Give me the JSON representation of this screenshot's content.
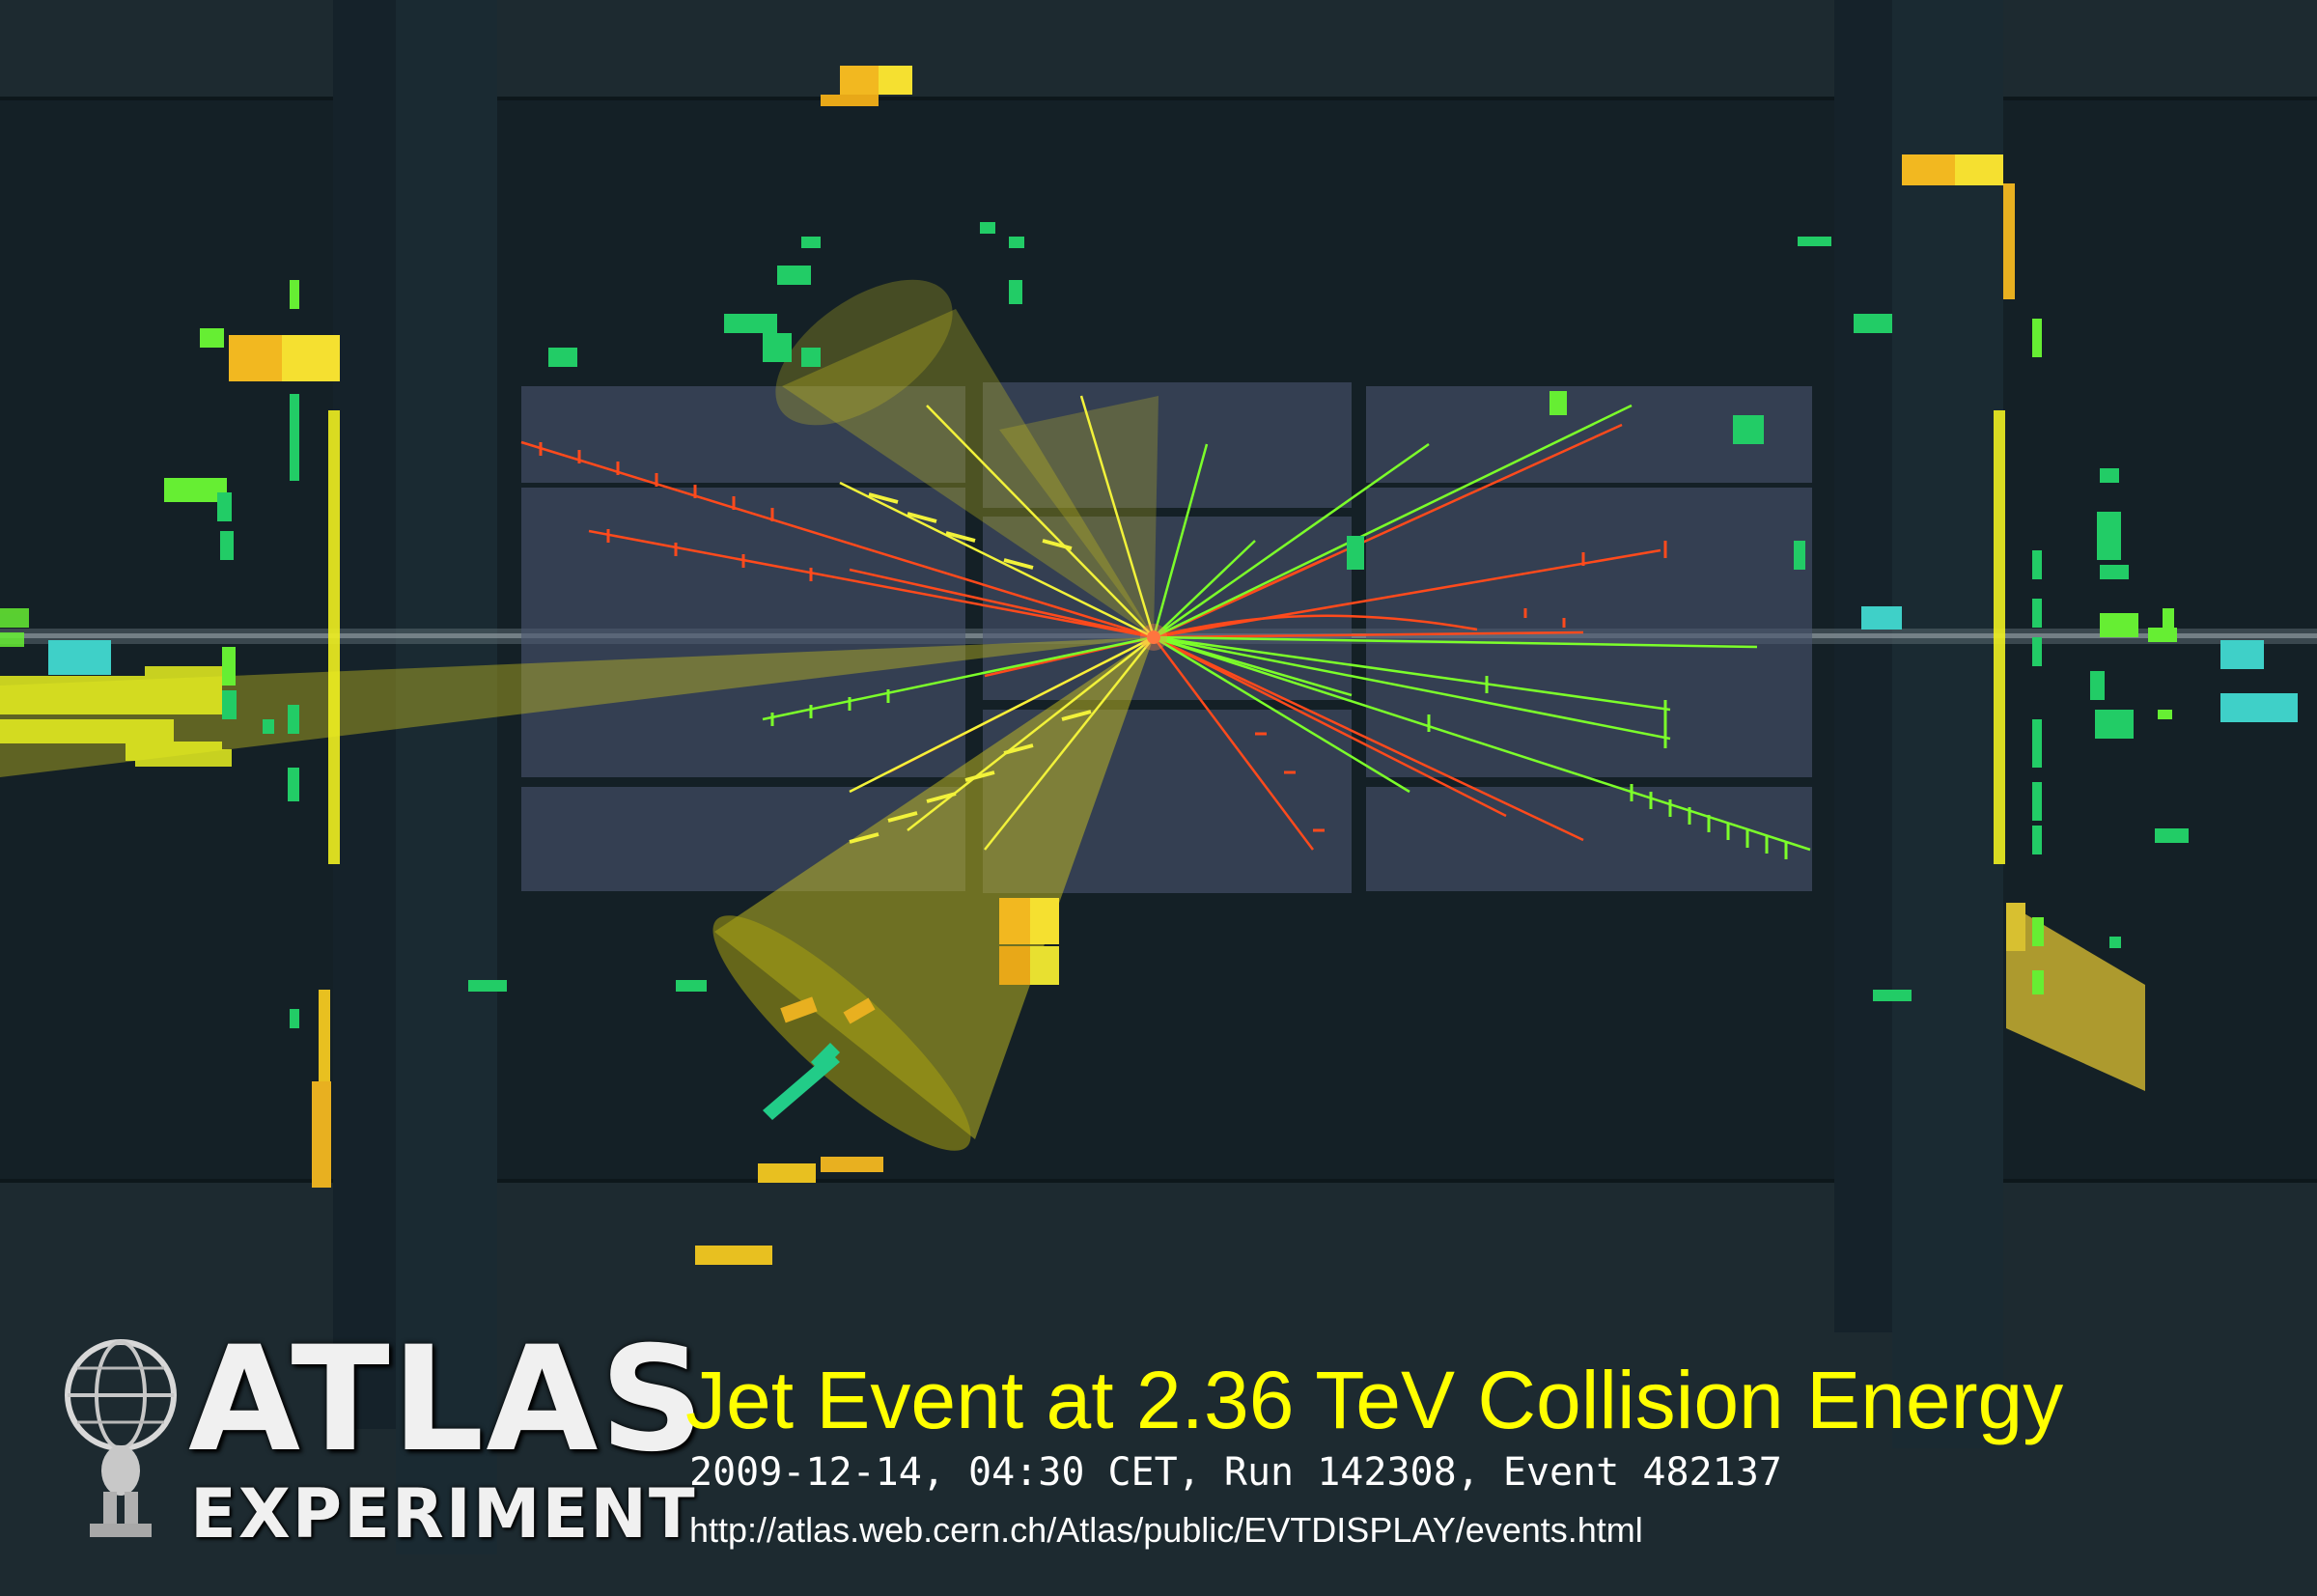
{
  "logo": {
    "title": "ATLAS",
    "subtitle": "EXPERIMENT",
    "icon": "atlas-globe-figure-icon"
  },
  "caption": {
    "title": "Jet Event at 2.36 TeV Collision Energy",
    "meta": "2009-12-14, 04:30 CET, Run 142308, Event 482137",
    "url": "http://atlas.web.cern.ch/Atlas/public/EVTDISPLAY/events.html"
  },
  "colors": {
    "background": "#1d2a30",
    "panel": "#4a5570",
    "title": "#ffff00",
    "track_red": "#ff4a1c",
    "track_green": "#7cff2a",
    "track_yellow": "#f2f23a",
    "jet_cone": "#c8c020",
    "calo_green": "#22cc66",
    "calo_cyan": "#3fd0c8"
  }
}
